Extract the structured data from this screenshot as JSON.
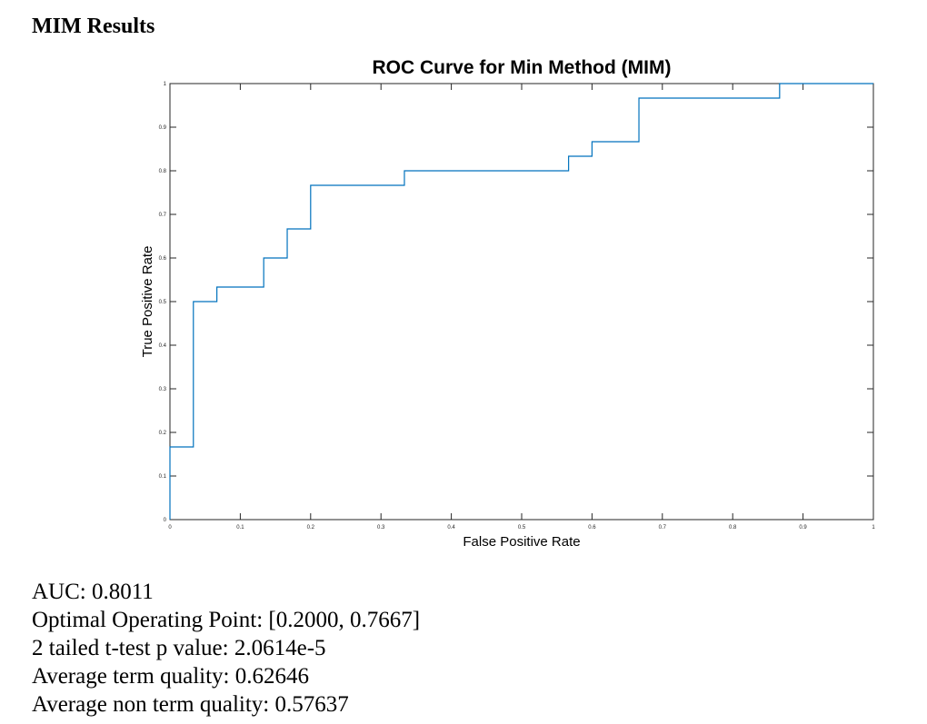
{
  "page": {
    "heading": "MIM Results"
  },
  "chart_data": {
    "type": "line",
    "title": "ROC Curve for Min Method (MIM)",
    "xlabel": "False Positive Rate",
    "ylabel": "True Positive Rate",
    "xlim": [
      0,
      1
    ],
    "ylim": [
      0,
      1
    ],
    "xticks": [
      "0",
      "0.1",
      "0.2",
      "0.3",
      "0.4",
      "0.5",
      "0.6",
      "0.7",
      "0.8",
      "0.9",
      "1"
    ],
    "yticks": [
      "0",
      "0.1",
      "0.2",
      "0.3",
      "0.4",
      "0.5",
      "0.6",
      "0.7",
      "0.8",
      "0.9",
      "1"
    ],
    "grid": false,
    "line_color": "#0072BD",
    "series": [
      {
        "x": [
          0,
          0,
          0.0333,
          0.0333,
          0.0667,
          0.0667,
          0.1333,
          0.1333,
          0.1667,
          0.1667,
          0.2,
          0.2,
          0.3333,
          0.3333,
          0.5667,
          0.5667,
          0.6,
          0.6,
          0.6667,
          0.6667,
          0.8667,
          0.8667,
          1.0
        ],
        "y": [
          0,
          0.1667,
          0.1667,
          0.5,
          0.5,
          0.5333,
          0.5333,
          0.6,
          0.6,
          0.6667,
          0.6667,
          0.7667,
          0.7667,
          0.8,
          0.8,
          0.8333,
          0.8333,
          0.8667,
          0.8667,
          0.9667,
          0.9667,
          1.0,
          1.0
        ]
      }
    ]
  },
  "stats": {
    "auc": "AUC: 0.8011",
    "optimal_point": "Optimal Operating Point: [0.2000, 0.7667]",
    "p_value": "2 tailed t-test p value: 2.0614e-5",
    "avg_term_quality": "Average term quality: 0.62646",
    "avg_non_term_quality": "Average non term quality: 0.57637"
  }
}
